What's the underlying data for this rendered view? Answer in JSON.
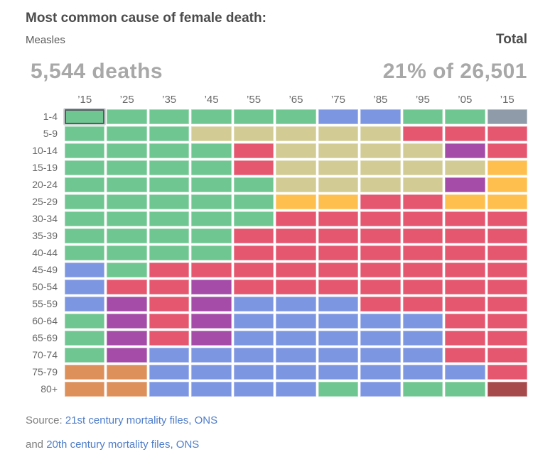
{
  "header": {
    "title": "Most common cause of female death:",
    "cause": "Measles",
    "total_label": "Total",
    "deaths_count": "5,544 deaths",
    "total_share": "21% of 26,501"
  },
  "footer": {
    "source_prefix": "Source: ",
    "source_link_1": "21st century mortality files, ONS",
    "source_prefix_2": "and ",
    "source_link_2": "20th century mortality files, ONS"
  },
  "chart_data": {
    "type": "heatmap",
    "title": "Most common cause of female death:",
    "selected_cause": "Measles",
    "selected_stats": {
      "deaths": "5,544 deaths",
      "share": "21% of 26,501"
    },
    "selected_cell": {
      "row_index": 0,
      "col_index": 0,
      "row": "1-4",
      "column": "’15"
    },
    "x_categories": [
      "’15",
      "’25",
      "’35",
      "’45",
      "’55",
      "’65",
      "’75",
      "’85",
      "’95",
      "’05",
      "’15"
    ],
    "y_categories": [
      "1-4",
      "5-9",
      "10-14",
      "15-19",
      "20-24",
      "25-29",
      "30-34",
      "35-39",
      "40-44",
      "45-49",
      "50-54",
      "55-59",
      "60-64",
      "65-69",
      "70-74",
      "75-79",
      "80+"
    ],
    "values": [
      [
        "green",
        "green",
        "green",
        "green",
        "green",
        "green",
        "blue",
        "blue",
        "green",
        "green",
        "gray"
      ],
      [
        "green",
        "green",
        "green",
        "tan",
        "tan",
        "tan",
        "tan",
        "tan",
        "red",
        "red",
        "red"
      ],
      [
        "green",
        "green",
        "green",
        "green",
        "red",
        "tan",
        "tan",
        "tan",
        "tan",
        "purple",
        "red"
      ],
      [
        "green",
        "green",
        "green",
        "green",
        "red",
        "tan",
        "tan",
        "tan",
        "tan",
        "tan",
        "amber"
      ],
      [
        "green",
        "green",
        "green",
        "green",
        "green",
        "tan",
        "tan",
        "tan",
        "tan",
        "purple",
        "amber"
      ],
      [
        "green",
        "green",
        "green",
        "green",
        "green",
        "amber",
        "amber",
        "red",
        "red",
        "amber",
        "amber"
      ],
      [
        "green",
        "green",
        "green",
        "green",
        "green",
        "red",
        "red",
        "red",
        "red",
        "red",
        "red"
      ],
      [
        "green",
        "green",
        "green",
        "green",
        "red",
        "red",
        "red",
        "red",
        "red",
        "red",
        "red"
      ],
      [
        "green",
        "green",
        "green",
        "green",
        "red",
        "red",
        "red",
        "red",
        "red",
        "red",
        "red"
      ],
      [
        "blue",
        "green",
        "red",
        "red",
        "red",
        "red",
        "red",
        "red",
        "red",
        "red",
        "red"
      ],
      [
        "blue",
        "red",
        "red",
        "purple",
        "red",
        "red",
        "red",
        "red",
        "red",
        "red",
        "red"
      ],
      [
        "blue",
        "purple",
        "red",
        "purple",
        "blue",
        "blue",
        "blue",
        "red",
        "red",
        "red",
        "red"
      ],
      [
        "green",
        "purple",
        "red",
        "purple",
        "blue",
        "blue",
        "blue",
        "blue",
        "blue",
        "red",
        "red"
      ],
      [
        "green",
        "purple",
        "red",
        "purple",
        "blue",
        "blue",
        "blue",
        "blue",
        "blue",
        "red",
        "red"
      ],
      [
        "green",
        "purple",
        "blue",
        "blue",
        "blue",
        "blue",
        "blue",
        "blue",
        "blue",
        "red",
        "red"
      ],
      [
        "orange",
        "orange",
        "blue",
        "blue",
        "blue",
        "blue",
        "blue",
        "blue",
        "blue",
        "blue",
        "red"
      ],
      [
        "orange",
        "orange",
        "blue",
        "blue",
        "blue",
        "blue",
        "green",
        "blue",
        "green",
        "green",
        "maroon"
      ]
    ],
    "color_key": {
      "green": "#6fc690",
      "tan": "#d2cb94",
      "red": "#e5566f",
      "blue": "#7d96e2",
      "purple": "#a54ca8",
      "amber": "#febf4e",
      "orange": "#dd9059",
      "gray": "#8f9ba8",
      "maroon": "#a74a4c"
    },
    "legend_position": "none",
    "notes": "Each cell is colored by the most common cause-of-death category for that female age group (rows) and decade (columns); colors are categorical."
  }
}
